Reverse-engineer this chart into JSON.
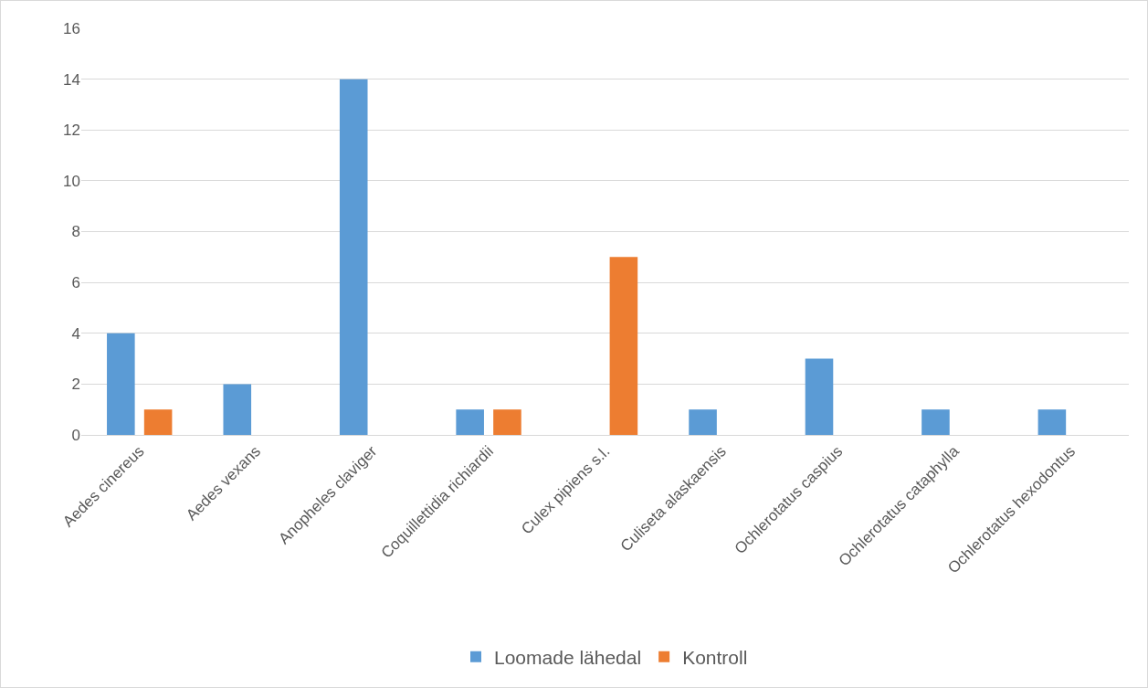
{
  "chart_data": {
    "type": "bar",
    "categories": [
      "Aedes cinereus",
      "Aedes vexans",
      "Anopheles claviger",
      "Coquillettidia richiardii",
      "Culex pipiens s.l.",
      "Culiseta alaskaensis",
      "Ochlerotatus caspius",
      "Ochlerotatus cataphylla",
      "Ochlerotatus hexodontus"
    ],
    "series": [
      {
        "name": "Loomade lähedal",
        "color": "#5b9bd5",
        "values": [
          4,
          2,
          14,
          1,
          0,
          1,
          3,
          1,
          1
        ]
      },
      {
        "name": "Kontroll",
        "color": "#ed7d31",
        "values": [
          1,
          0,
          0,
          1,
          7,
          0,
          0,
          0,
          0
        ]
      }
    ],
    "ylim": [
      0,
      16
    ],
    "yticks": [
      0,
      2,
      4,
      6,
      8,
      10,
      12,
      14,
      16
    ],
    "grid": "y",
    "legend": "bottom"
  }
}
